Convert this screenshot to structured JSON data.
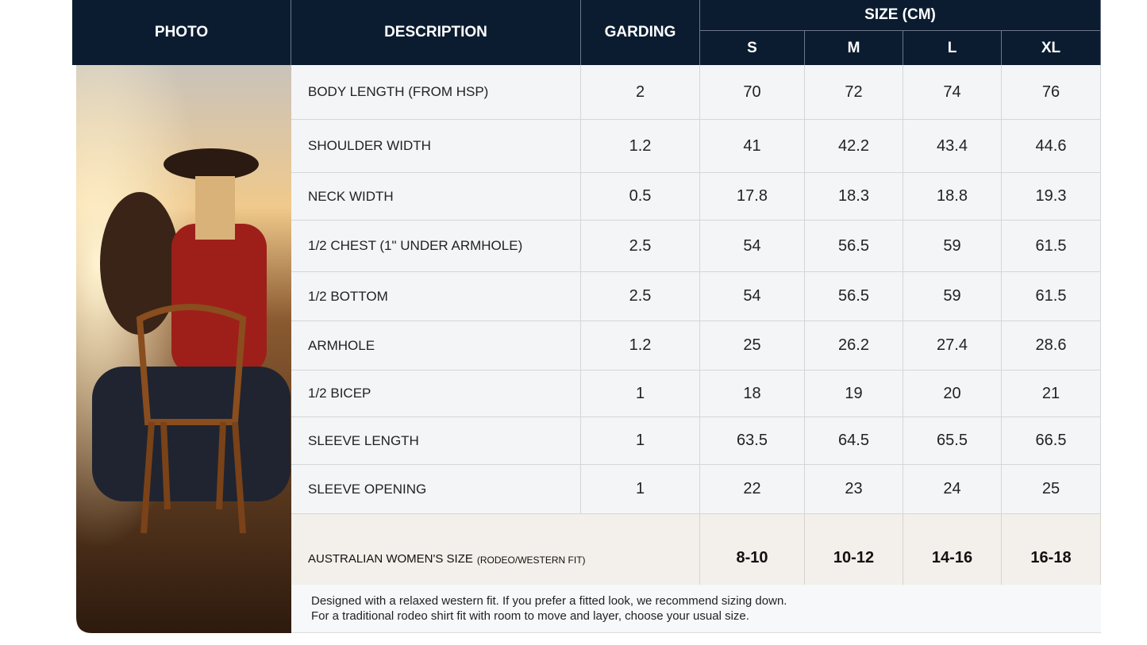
{
  "header": {
    "photo": "PHOTO",
    "description": "DESCRIPTION",
    "garding": "GARDING",
    "size": "SIZE (CM)",
    "sizes": [
      "S",
      "M",
      "L",
      "XL"
    ]
  },
  "rows": [
    {
      "description": "BODY LENGTH (FROM HSP)",
      "garding": 2,
      "values": [
        70,
        72,
        74,
        76
      ]
    },
    {
      "description": "SHOULDER WIDTH",
      "garding": 1.2,
      "values": [
        41,
        42.2,
        43.4,
        44.6
      ]
    },
    {
      "description": "NECK WIDTH",
      "garding": 0.5,
      "values": [
        17.8,
        18.3,
        18.8,
        19.3
      ]
    },
    {
      "description": "1/2 CHEST (1\" UNDER ARMHOLE)",
      "garding": 2.5,
      "values": [
        54,
        56.5,
        59,
        61.5
      ]
    },
    {
      "description": "1/2 BOTTOM",
      "garding": 2.5,
      "values": [
        54,
        56.5,
        59,
        61.5
      ]
    },
    {
      "description": "ARMHOLE",
      "garding": 1.2,
      "values": [
        25,
        26.2,
        27.4,
        28.6
      ]
    },
    {
      "description": "1/2 BICEP",
      "garding": 1,
      "values": [
        18,
        19,
        20,
        21
      ]
    },
    {
      "description": "SLEEVE LENGTH",
      "garding": 1,
      "values": [
        63.5,
        64.5,
        65.5,
        66.5
      ]
    },
    {
      "description": "SLEEVE OPENING",
      "garding": 1,
      "values": [
        22,
        23,
        24,
        25
      ]
    }
  ],
  "australian": {
    "label": "AUSTRALIAN WOMEN'S SIZE",
    "note": "(RODEO/WESTERN FIT)",
    "values": [
      "8-10",
      "10-12",
      "14-16",
      "16-18"
    ]
  },
  "footnote": [
    "Designed with a relaxed western fit. If you prefer a fitted look, we recommend sizing down.",
    "For a traditional rodeo shirt fit with room to move and layer, choose your usual size."
  ]
}
